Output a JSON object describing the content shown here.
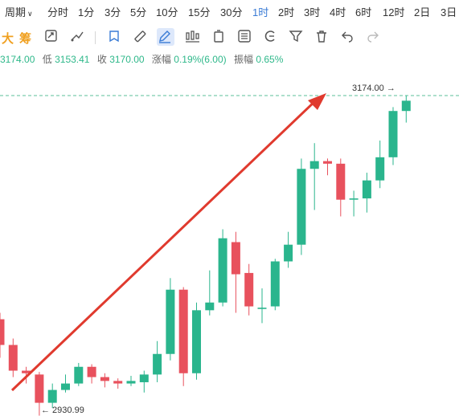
{
  "timeframes": {
    "period_label": "周期",
    "items": [
      "分时",
      "1分",
      "3分",
      "5分",
      "10分",
      "15分",
      "30分",
      "1时",
      "2时",
      "3时",
      "4时",
      "6时",
      "12时",
      "2日",
      "3日"
    ],
    "active": "1时"
  },
  "toolbar": {
    "text_tool_1": "大",
    "text_tool_2": "筹",
    "icons": [
      "screen-icon",
      "draw-line-icon",
      "bookmark-icon",
      "ruler-icon",
      "pen-icon",
      "candlestick-icon",
      "battery-icon",
      "fib-icon",
      "magnet-icon",
      "filter-icon",
      "trash-icon",
      "undo-icon",
      "redo-icon"
    ]
  },
  "quote": {
    "open_value": "3174.00",
    "low_label": "低",
    "low_value": "3153.41",
    "close_label": "收",
    "close_value": "3170.00",
    "change_label": "涨幅",
    "change_value": "0.19%(6.00)",
    "amplitude_label": "振幅",
    "amplitude_value": "0.65%"
  },
  "chart_labels": {
    "high_label": "3174.00 →",
    "low_label": "← 2930.99"
  },
  "colors": {
    "up": "#2ab58d",
    "down": "#e8515d",
    "active_tab": "#3a7bd5",
    "arrow": "#e03a2e",
    "dashed_line": "#5bbf9a"
  },
  "chart_data": {
    "type": "candlestick",
    "high_marker": 3174.0,
    "low_marker": 2930.99,
    "candles": [
      {
        "o": 3000,
        "c": 2980,
        "h": 3005,
        "l": 2970
      },
      {
        "o": 2980,
        "c": 2960,
        "h": 2985,
        "l": 2955
      },
      {
        "o": 2960,
        "c": 2958,
        "h": 2963,
        "l": 2950
      },
      {
        "o": 2957,
        "c": 2935,
        "h": 2959,
        "l": 2925
      },
      {
        "o": 2935,
        "c": 2945,
        "h": 2950,
        "l": 2931
      },
      {
        "o": 2945,
        "c": 2950,
        "h": 2957,
        "l": 2943
      },
      {
        "o": 2950,
        "c": 2963,
        "h": 2966,
        "l": 2948
      },
      {
        "o": 2963,
        "c": 2955,
        "h": 2965,
        "l": 2950
      },
      {
        "o": 2955,
        "c": 2952,
        "h": 2958,
        "l": 2947
      },
      {
        "o": 2952,
        "c": 2950,
        "h": 2954,
        "l": 2946
      },
      {
        "o": 2950,
        "c": 2952,
        "h": 2956,
        "l": 2948
      },
      {
        "o": 2951,
        "c": 2957,
        "h": 2960,
        "l": 2943
      },
      {
        "o": 2957,
        "c": 2973,
        "h": 2983,
        "l": 2951
      },
      {
        "o": 2973,
        "c": 3023,
        "h": 3032,
        "l": 2968
      },
      {
        "o": 3023,
        "c": 2958,
        "h": 3025,
        "l": 2948
      },
      {
        "o": 2958,
        "c": 3007,
        "h": 3013,
        "l": 2953
      },
      {
        "o": 3007,
        "c": 3013,
        "h": 3038,
        "l": 3003
      },
      {
        "o": 3013,
        "c": 3063,
        "h": 3070,
        "l": 3010
      },
      {
        "o": 3060,
        "c": 3035,
        "h": 3068,
        "l": 3005
      },
      {
        "o": 3036,
        "c": 3010,
        "h": 3043,
        "l": 3003
      },
      {
        "o": 3008,
        "c": 3009,
        "h": 3024,
        "l": 2997
      },
      {
        "o": 3010,
        "c": 3045,
        "h": 3047,
        "l": 3007
      },
      {
        "o": 3045,
        "c": 3058,
        "h": 3068,
        "l": 3040
      },
      {
        "o": 3058,
        "c": 3117,
        "h": 3125,
        "l": 3050
      },
      {
        "o": 3117,
        "c": 3123,
        "h": 3137,
        "l": 3085
      },
      {
        "o": 3123,
        "c": 3121,
        "h": 3125,
        "l": 3112
      },
      {
        "o": 3121,
        "c": 3093,
        "h": 3125,
        "l": 3080
      },
      {
        "o": 3093,
        "c": 3094,
        "h": 3100,
        "l": 3080
      },
      {
        "o": 3094,
        "c": 3108,
        "h": 3114,
        "l": 3083
      },
      {
        "o": 3108,
        "c": 3126,
        "h": 3139,
        "l": 3102
      },
      {
        "o": 3126,
        "c": 3162,
        "h": 3165,
        "l": 3120
      },
      {
        "o": 3162,
        "c": 3170,
        "h": 3174,
        "l": 3153
      }
    ]
  }
}
